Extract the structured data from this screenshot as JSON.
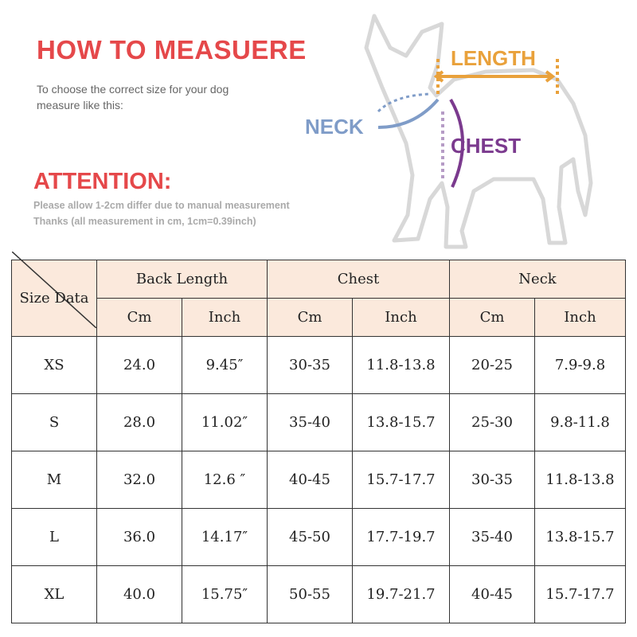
{
  "header": {
    "title": "HOW TO MEASUERE",
    "subtitle_line1": "To choose the correct size for your dog",
    "subtitle_line2": "measure like this:",
    "attention": "ATTENTION:",
    "note_line1": "Please allow 1-2cm differ due to manual measurement",
    "note_line2": "Thanks (all measurement in cm, 1cm=0.39inch)"
  },
  "diagram": {
    "length": "LENGTH",
    "neck": "NECK",
    "chest": "CHEST",
    "colors": {
      "length": "#e9a13b",
      "neck": "#7f9cc8",
      "chest": "#7b3a8e"
    }
  },
  "table": {
    "corner": "Size Data",
    "groups": [
      "Back Length",
      "Chest",
      "Neck"
    ],
    "units": [
      "Cm",
      "Inch",
      "Cm",
      "Inch",
      "Cm",
      "Inch"
    ],
    "rows": [
      [
        "XS",
        "24.0",
        "9.45″",
        "30-35",
        "11.8-13.8",
        "20-25",
        "7.9-9.8"
      ],
      [
        "S",
        "28.0",
        "11.02″",
        "35-40",
        "13.8-15.7",
        "25-30",
        "9.8-11.8"
      ],
      [
        "M",
        "32.0",
        "12.6 ″",
        "40-45",
        "15.7-17.7",
        "30-35",
        "11.8-13.8"
      ],
      [
        "L",
        "36.0",
        "14.17″",
        "45-50",
        "17.7-19.7",
        "35-40",
        "13.8-15.7"
      ],
      [
        "XL",
        "40.0",
        "15.75″",
        "50-55",
        "19.7-21.7",
        "40-45",
        "15.7-17.7"
      ]
    ]
  }
}
